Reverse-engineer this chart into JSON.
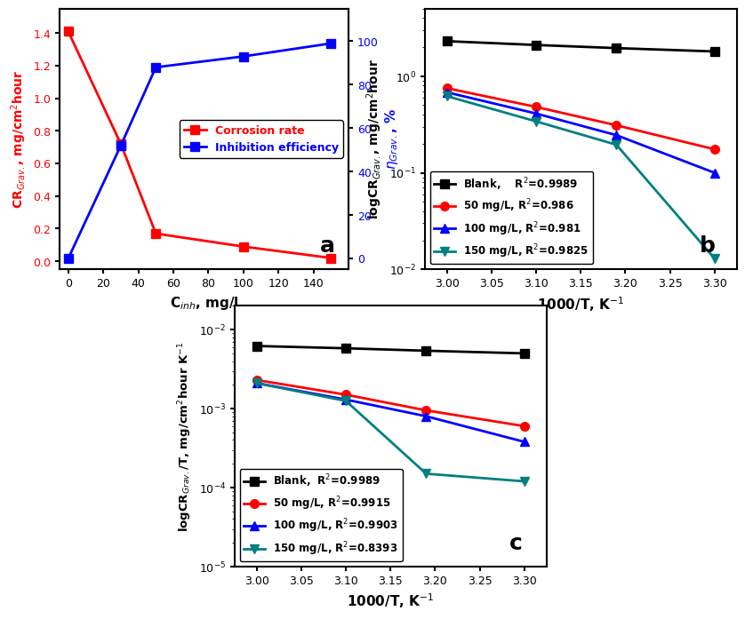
{
  "panel_a": {
    "x": [
      0,
      30,
      50,
      100,
      150
    ],
    "cr": [
      1.41,
      0.72,
      0.17,
      0.09,
      0.02
    ],
    "eta": [
      0,
      52,
      88,
      93,
      99
    ],
    "cr_color": "red",
    "eta_color": "blue",
    "xlabel": "C$_{inh}$, mg/l",
    "ylabel_left": "CR$_{Grav.}$, mg/cm$^2$hour",
    "ylabel_right": "$\\eta_{Grav.}$, %",
    "label_cr": "Corrosion rate",
    "label_eta": "Inhibition efficiency",
    "letter": "a"
  },
  "panel_b": {
    "x": [
      3.0,
      3.1,
      3.19,
      3.3
    ],
    "blank": [
      2.3,
      2.1,
      1.95,
      1.8
    ],
    "s50": [
      0.75,
      0.48,
      0.31,
      0.175
    ],
    "s100": [
      0.68,
      0.41,
      0.245,
      0.1
    ],
    "s150": [
      0.62,
      0.34,
      0.195,
      0.013
    ],
    "xlabel": "1000/T, K$^{-1}$",
    "ylabel": "logCR$_{Grav.}$, mg/cm$^2$hour",
    "label_blank": "Blank,    R$^2$=0.9989",
    "label_50": "50 mg/L, R$^2$=0.986",
    "label_100": "100 mg/L, R$^2$=0.981",
    "label_150": "150 mg/L, R$^2$=0.9825",
    "letter": "b",
    "ylim": [
      0.01,
      5.0
    ],
    "xlim": [
      2.975,
      3.325
    ]
  },
  "panel_c": {
    "x": [
      3.0,
      3.1,
      3.19,
      3.3
    ],
    "blank": [
      0.0062,
      0.0058,
      0.0054,
      0.005
    ],
    "s50": [
      0.0023,
      0.0015,
      0.00095,
      0.0006
    ],
    "s100": [
      0.0021,
      0.0013,
      0.0008,
      0.00038
    ],
    "s150": [
      0.0021,
      0.00125,
      0.00015,
      0.00012
    ],
    "xlabel": "1000/T, K$^{-1}$",
    "ylabel": "logCR$_{Grav.}$/T, mg/cm$^2$hour K$^{-1}$",
    "label_blank": "Blank,  R$^2$=0.9989",
    "label_50": "50 mg/L, R$^2$=0.9915",
    "label_100": "100 mg/L, R$^2$=0.9903",
    "label_150": "150 mg/L, R$^2$=0.8393",
    "letter": "c",
    "ylim": [
      1e-05,
      0.02
    ],
    "xlim": [
      2.975,
      3.325
    ]
  },
  "colors": {
    "blank": "black",
    "s50": "red",
    "s100": "blue",
    "s150": "#008080"
  }
}
